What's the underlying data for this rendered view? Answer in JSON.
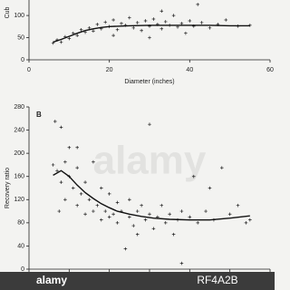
{
  "chart_data": [
    {
      "type": "scatter",
      "ylabel": "Cub",
      "xlabel": "Diameter (inches)",
      "xlim": [
        0,
        60
      ],
      "xticks": [
        0,
        20,
        40,
        60
      ],
      "ylim": [
        0,
        135
      ],
      "yticks": [
        0,
        50,
        100
      ],
      "series": [
        {
          "color": "#222222",
          "marker": "+",
          "x": [
            6,
            7,
            8,
            9,
            10,
            11,
            12,
            13,
            14,
            15,
            16,
            17,
            18,
            19,
            20,
            21,
            22,
            23,
            24,
            25,
            26,
            27,
            28,
            29,
            30,
            31,
            32,
            33,
            34,
            35,
            36,
            37,
            38,
            39,
            40,
            41,
            43,
            45,
            47,
            49,
            52,
            55,
            21,
            33,
            42,
            30
          ],
          "values": [
            38,
            45,
            40,
            52,
            48,
            60,
            55,
            68,
            62,
            72,
            65,
            80,
            70,
            85,
            75,
            90,
            68,
            82,
            78,
            95,
            72,
            84,
            66,
            88,
            76,
            92,
            80,
            70,
            86,
            78,
            100,
            74,
            82,
            60,
            88,
            76,
            84,
            72,
            80,
            90,
            76,
            78,
            55,
            110,
            125,
            50
          ]
        },
        {
          "color": "#111111",
          "style": "line",
          "x": [
            6,
            8,
            10,
            12,
            14,
            16,
            18,
            20,
            25,
            30,
            35,
            40,
            45,
            50,
            55
          ],
          "values": [
            40,
            46,
            53,
            60,
            66,
            70,
            73,
            75,
            77,
            78,
            78,
            78,
            78,
            77,
            77
          ]
        }
      ]
    },
    {
      "type": "scatter",
      "panel": "B",
      "ylabel": "Recovery ratio",
      "xlim": [
        0,
        60
      ],
      "xticks": [
        {
          "value": 0,
          "label": null
        },
        {
          "value": 10,
          "label": null
        },
        {
          "value": 20,
          "label": null
        },
        {
          "value": 30,
          "label": null
        },
        {
          "value": 40,
          "label": null
        },
        {
          "value": 50,
          "label": null
        },
        {
          "value": 60,
          "label": null
        }
      ],
      "ylim": [
        0,
        280
      ],
      "yticks": [
        0,
        40,
        80,
        120,
        160,
        200,
        240,
        280
      ],
      "series": [
        {
          "color": "#222222",
          "marker": "+",
          "x": [
            6,
            6.5,
            7,
            7.5,
            8,
            8,
            9,
            9,
            10,
            10,
            11,
            12,
            12,
            13,
            14,
            14,
            15,
            16,
            16,
            17,
            18,
            18,
            19,
            20,
            20,
            21,
            22,
            22,
            23,
            24,
            25,
            25,
            26,
            27,
            28,
            29,
            30,
            30,
            31,
            32,
            33,
            34,
            35,
            36,
            37,
            38,
            38,
            40,
            41,
            42,
            44,
            45,
            46,
            48,
            50,
            52,
            54,
            55,
            12,
            27
          ],
          "values": [
            180,
            255,
            170,
            100,
            150,
            245,
            185,
            120,
            160,
            210,
            140,
            175,
            110,
            130,
            150,
            95,
            120,
            185,
            100,
            110,
            140,
            85,
            100,
            130,
            90,
            95,
            80,
            115,
            100,
            35,
            90,
            120,
            75,
            100,
            110,
            85,
            95,
            250,
            70,
            90,
            110,
            80,
            95,
            60,
            85,
            10,
            100,
            90,
            160,
            80,
            100,
            140,
            85,
            175,
            95,
            110,
            80,
            85,
            210,
            60
          ]
        },
        {
          "color": "#111111",
          "style": "line",
          "x": [
            6,
            8,
            10,
            12,
            14,
            16,
            18,
            20,
            22,
            25,
            28,
            31,
            35,
            40,
            45,
            50,
            55
          ],
          "values": [
            162,
            170,
            160,
            145,
            132,
            122,
            113,
            106,
            100,
            95,
            91,
            88,
            86,
            85,
            85,
            88,
            92
          ]
        }
      ]
    }
  ],
  "watermark": {
    "brand": "alamy",
    "code": "RF4A2B"
  }
}
